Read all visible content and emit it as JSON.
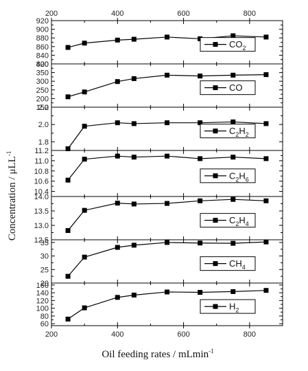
{
  "chart_data": {
    "type": "line",
    "xlabel": "Oil feeding rates / mLmin",
    "xlabel_sup": "-1",
    "ylabel": "Concentration / μLL",
    "ylabel_sup": "-1",
    "xlim": [
      200,
      900
    ],
    "x_ticks": [
      200,
      400,
      600,
      800
    ],
    "x_tick_labels": [
      "200",
      "400",
      "600",
      "800"
    ],
    "x": [
      250,
      300,
      400,
      450,
      550,
      650,
      750,
      850
    ],
    "legend_position": "right",
    "panels": [
      {
        "series_name": "CO2",
        "legend_main": "CO",
        "legend_sub": "2",
        "ylim": [
          820,
          920
        ],
        "y_ticks": [
          820,
          840,
          860,
          880,
          900,
          920
        ],
        "y_tick_labels": [
          "820",
          "840",
          "860",
          "880",
          "900",
          "920"
        ],
        "y_minor_ticks": [
          830,
          850,
          870,
          890,
          910
        ],
        "values": [
          858,
          868,
          875,
          877,
          882,
          878,
          885,
          882
        ]
      },
      {
        "series_name": "CO",
        "legend_main": "CO",
        "legend_sub": "",
        "ylim": [
          150,
          400
        ],
        "y_ticks": [
          150,
          200,
          250,
          300,
          350,
          400
        ],
        "y_tick_labels": [
          "150",
          "200",
          "250",
          "300",
          "350",
          "400"
        ],
        "y_minor_ticks": [
          175,
          225,
          275,
          325,
          375
        ],
        "values": [
          210,
          238,
          298,
          315,
          335,
          330,
          335,
          338
        ]
      },
      {
        "series_name": "C2H2",
        "legend_main": "C",
        "legend_sub": "2",
        "legend_main2": "H",
        "legend_sub2": "2",
        "ylim": [
          1.7,
          2.2
        ],
        "y_ticks": [
          1.8,
          2.0,
          2.2
        ],
        "y_tick_labels": [
          "1.8",
          "2.0",
          "2.2"
        ],
        "y_minor_ticks": [
          1.9,
          2.1
        ],
        "values": [
          1.72,
          1.98,
          2.02,
          2.01,
          2.02,
          2.02,
          2.03,
          2.01
        ]
      },
      {
        "series_name": "C2H6",
        "legend_main": "C",
        "legend_sub": "2",
        "legend_main2": "H",
        "legend_sub2": "6",
        "ylim": [
          10.3,
          11.2
        ],
        "y_ticks": [
          10.4,
          10.6,
          10.8,
          11.0,
          11.2
        ],
        "y_tick_labels": [
          "10.4",
          "10.6",
          "10.8",
          "11.0",
          "11.2"
        ],
        "y_minor_ticks": [
          10.5,
          10.7,
          10.9,
          11.1
        ],
        "values": [
          10.62,
          11.03,
          11.09,
          11.07,
          11.09,
          11.04,
          11.07,
          11.04
        ]
      },
      {
        "series_name": "C2H4",
        "legend_main": "C",
        "legend_sub": "2",
        "legend_main2": "H",
        "legend_sub2": "4",
        "ylim": [
          12.5,
          14.0
        ],
        "y_ticks": [
          12.5,
          13.0,
          13.5,
          14.0
        ],
        "y_tick_labels": [
          "12.5",
          "13.0",
          "13.5",
          "14.0"
        ],
        "y_minor_ticks": [
          12.75,
          13.25,
          13.75
        ],
        "values": [
          12.82,
          13.52,
          13.77,
          13.74,
          13.76,
          13.85,
          13.9,
          13.85
        ]
      },
      {
        "series_name": "CH4",
        "legend_main": "CH",
        "legend_sub": "4",
        "ylim": [
          20,
          36
        ],
        "y_ticks": [
          20,
          25,
          30,
          35
        ],
        "y_tick_labels": [
          "20",
          "25",
          "30",
          "35"
        ],
        "y_minor_ticks": [
          22.5,
          27.5,
          32.5
        ],
        "values": [
          22.5,
          29.6,
          33.2,
          34.0,
          35.0,
          34.8,
          34.7,
          35.2
        ]
      },
      {
        "series_name": "H2",
        "legend_main": "H",
        "legend_sub": "2",
        "ylim": [
          55,
          165
        ],
        "y_ticks": [
          60,
          80,
          100,
          120,
          140,
          160
        ],
        "y_tick_labels": [
          "60",
          "80",
          "100",
          "120",
          "140",
          "160"
        ],
        "y_minor_ticks": [
          70,
          90,
          110,
          130,
          150
        ],
        "values": [
          72,
          101,
          128,
          134,
          142,
          141,
          143,
          146
        ]
      }
    ]
  }
}
